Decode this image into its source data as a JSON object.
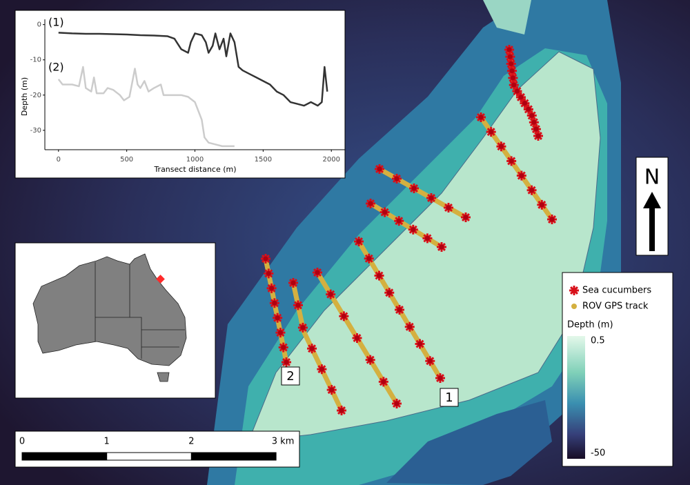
{
  "chart_data": {
    "type": "line",
    "xlabel": "Transect distance (m)",
    "ylabel": "Depth (m)",
    "annotations": [
      "(1)",
      "(2)"
    ],
    "xlim": [
      -100,
      2100
    ],
    "xticks": [
      0,
      500,
      1000,
      1500,
      2000
    ],
    "ylim": [
      -35.5,
      1.5
    ],
    "yticks": [
      0,
      -10,
      -20,
      -30
    ],
    "series": [
      {
        "color": "#333333",
        "x": [
          0,
          100,
          200,
          300,
          400,
          500,
          600,
          700,
          800,
          850,
          900,
          950,
          970,
          1000,
          1050,
          1080,
          1100,
          1130,
          1150,
          1180,
          1210,
          1230,
          1260,
          1290,
          1320,
          1350,
          1400,
          1450,
          1500,
          1550,
          1600,
          1650,
          1700,
          1750,
          1800,
          1850,
          1900,
          1930,
          1950,
          1970
        ],
        "values": [
          -2.3,
          -2.5,
          -2.6,
          -2.6,
          -2.7,
          -2.8,
          -3,
          -3.1,
          -3.3,
          -4,
          -7,
          -8,
          -5,
          -2.5,
          -3,
          -5,
          -8,
          -6,
          -2.5,
          -7,
          -4,
          -9,
          -2.5,
          -5,
          -12,
          -13,
          -14,
          -15,
          -16,
          -17,
          -19,
          -20,
          -22,
          -22.5,
          -23,
          -22,
          -23,
          -22,
          -12,
          -19
        ]
      },
      {
        "color": "#cccccc",
        "x": [
          0,
          30,
          100,
          150,
          180,
          200,
          240,
          260,
          280,
          330,
          360,
          400,
          450,
          480,
          520,
          560,
          580,
          600,
          630,
          660,
          700,
          750,
          770,
          800,
          850,
          900,
          950,
          1000,
          1020,
          1050,
          1070,
          1100,
          1150,
          1200,
          1250,
          1290
        ],
        "values": [
          -15.5,
          -17,
          -17,
          -17.5,
          -12,
          -18,
          -19,
          -15,
          -19.5,
          -19.5,
          -18,
          -18.5,
          -20,
          -21.5,
          -20.5,
          -12.5,
          -17,
          -18,
          -16,
          -19,
          -18,
          -17,
          -20,
          -20,
          -20,
          -20,
          -20.5,
          -22,
          -24,
          -27,
          -32,
          -33.5,
          -34,
          -34.5,
          -34.5,
          -34.5
        ]
      }
    ]
  },
  "map": {
    "legend": [
      "Sea cucumbers",
      "ROV GPS track"
    ],
    "colorbar": {
      "title": "Depth (m)",
      "ticks": [
        0.5,
        -50
      ],
      "lim": [
        -50,
        0.5
      ]
    },
    "scale_bar": {
      "ticks": [
        0,
        1,
        2,
        {
          "value": 3,
          "label": "3 km"
        }
      ]
    },
    "north": "N",
    "transect_labels": [
      "1",
      "2"
    ]
  }
}
